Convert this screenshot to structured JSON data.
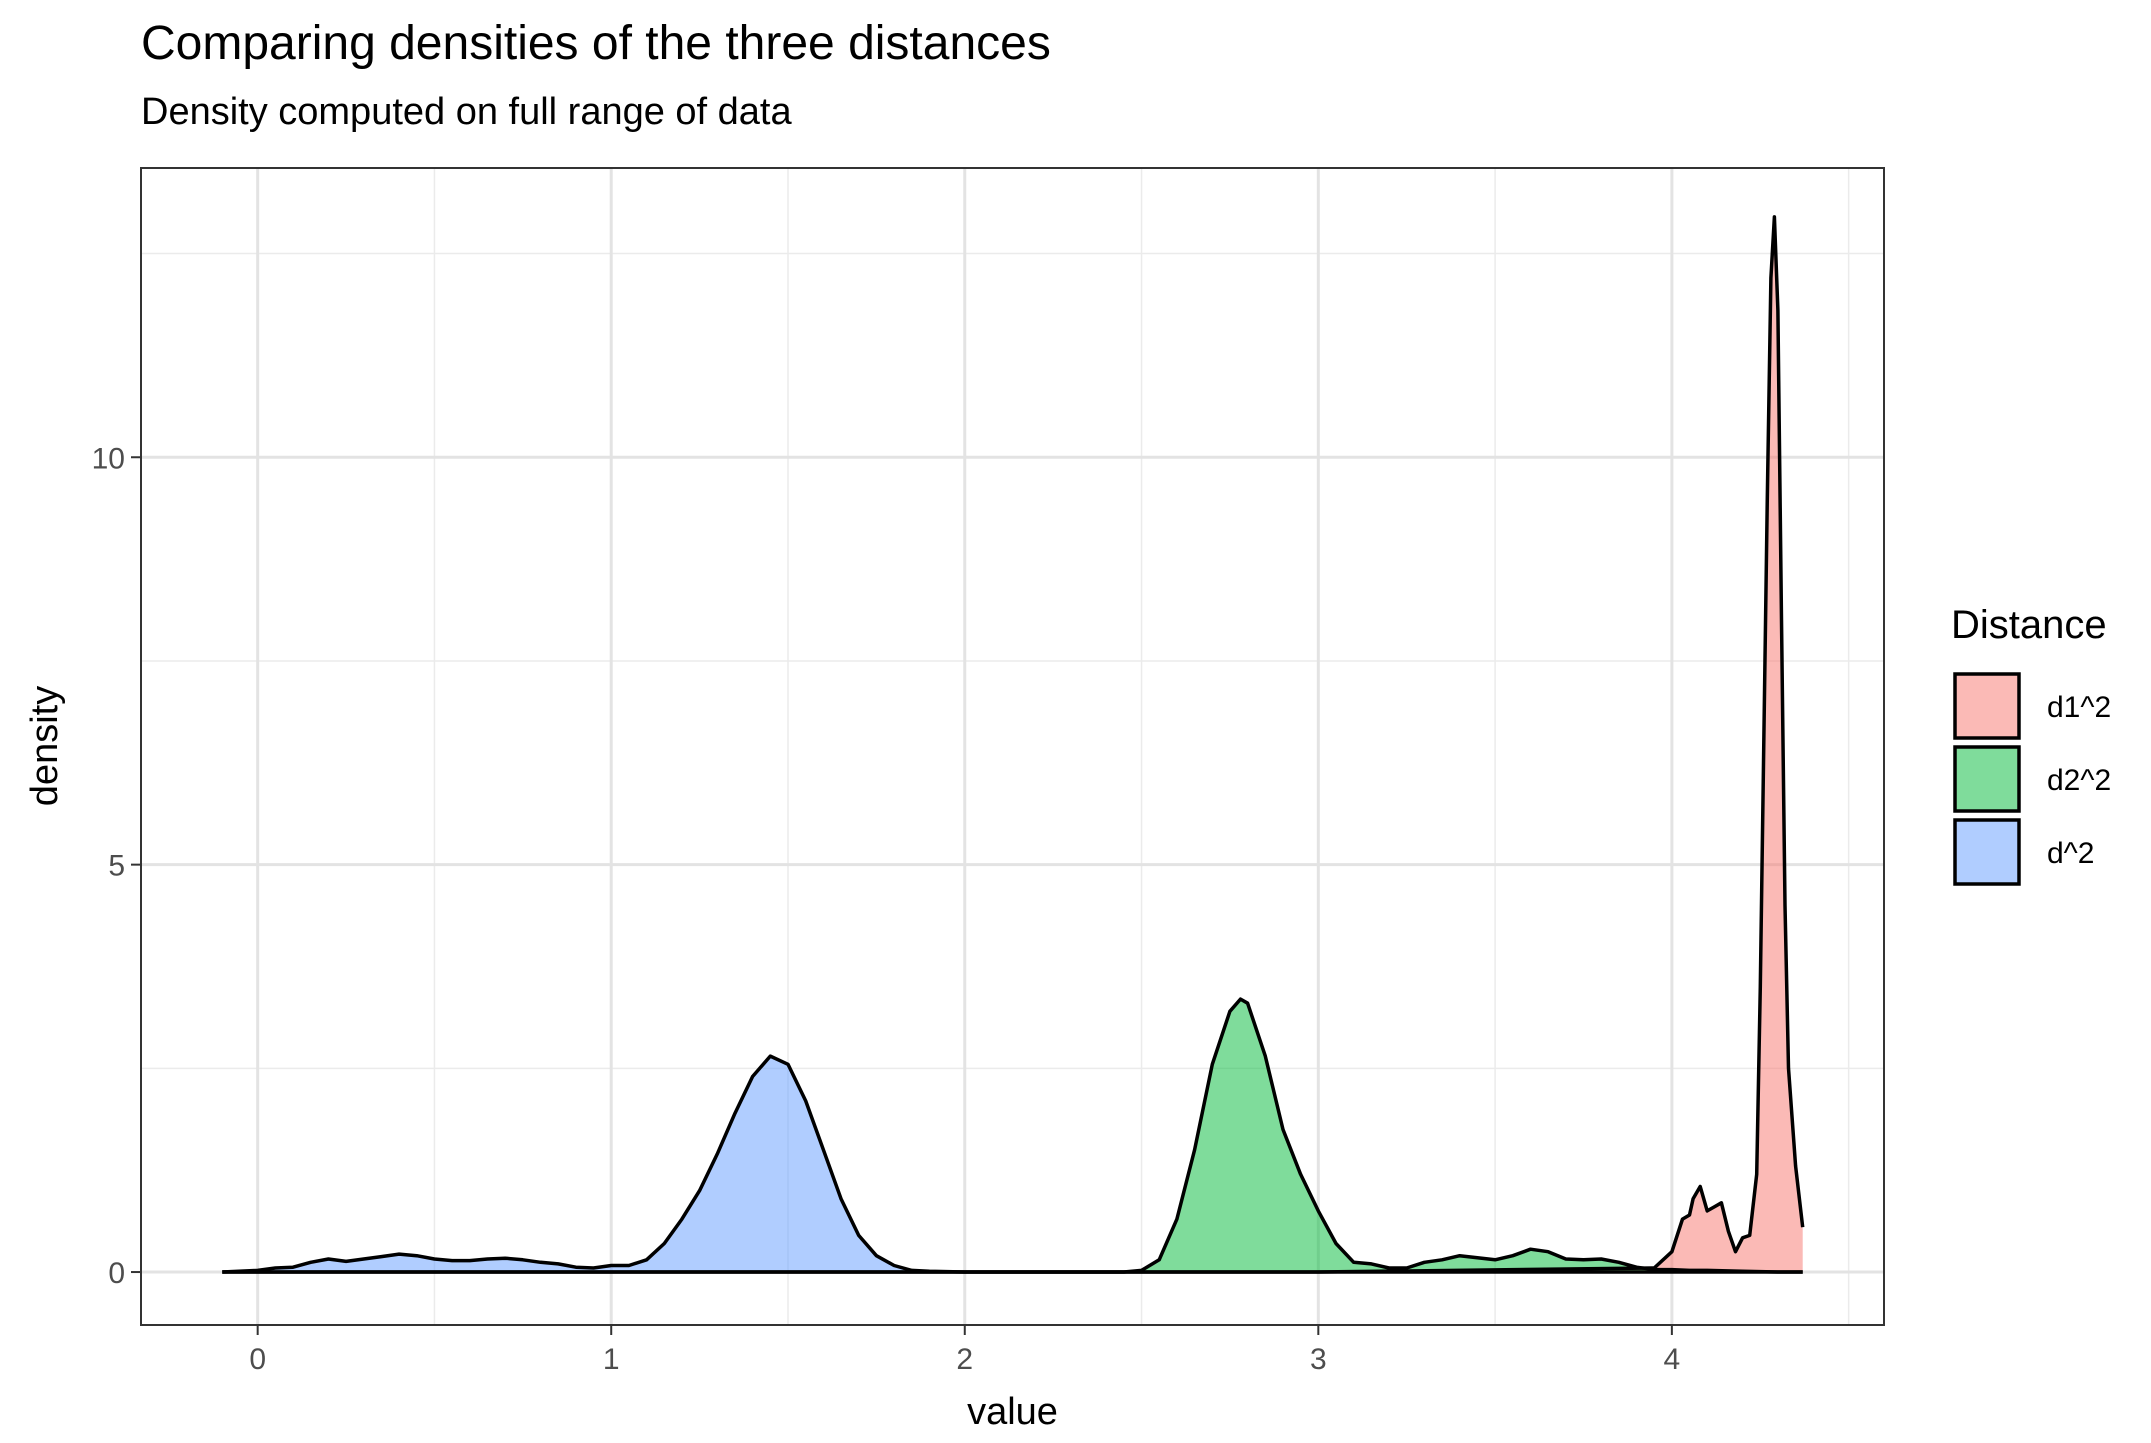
{
  "chart_data": {
    "type": "area",
    "title": "Comparing densities of the three distances",
    "subtitle": "Density computed on full range of data",
    "xlabel": "value",
    "ylabel": "density",
    "xlim": [
      -0.33,
      4.6
    ],
    "ylim": [
      -0.65,
      13.55
    ],
    "x_ticks": [
      0,
      1,
      2,
      3,
      4
    ],
    "y_ticks": [
      0,
      5,
      10
    ],
    "x_tick_labels": [
      "0",
      "1",
      "2",
      "3",
      "4"
    ],
    "y_tick_labels": [
      "0",
      "5",
      "10"
    ],
    "grid": true,
    "legend": {
      "title": "Distance",
      "position": "right"
    },
    "series": [
      {
        "name": "d1^2",
        "color": "#F8766D",
        "x": [
          -0.1,
          3.0,
          3.95,
          4.0,
          4.03,
          4.05,
          4.06,
          4.08,
          4.1,
          4.12,
          4.14,
          4.16,
          4.18,
          4.2,
          4.22,
          4.24,
          4.25,
          4.27,
          4.28,
          4.29,
          4.3,
          4.31,
          4.32,
          4.33,
          4.35,
          4.37
        ],
        "y": [
          0,
          0,
          0.05,
          0.25,
          0.65,
          0.7,
          0.9,
          1.05,
          0.75,
          0.8,
          0.85,
          0.5,
          0.25,
          0.42,
          0.45,
          1.2,
          3.5,
          9.5,
          12.2,
          12.95,
          11.8,
          8.0,
          4.5,
          2.5,
          1.3,
          0.55
        ]
      },
      {
        "name": "d2^2",
        "color": "#00BA38",
        "x": [
          -0.1,
          2.45,
          2.5,
          2.55,
          2.6,
          2.65,
          2.7,
          2.75,
          2.78,
          2.8,
          2.85,
          2.9,
          2.95,
          3.0,
          3.05,
          3.1,
          3.15,
          3.2,
          3.25,
          3.3,
          3.35,
          3.4,
          3.5,
          3.55,
          3.6,
          3.65,
          3.7,
          3.75,
          3.8,
          3.85,
          3.9,
          3.95,
          4.0,
          4.05,
          4.1,
          4.2,
          4.3,
          4.37
        ],
        "y": [
          0,
          0,
          0.02,
          0.15,
          0.65,
          1.5,
          2.55,
          3.2,
          3.35,
          3.3,
          2.65,
          1.75,
          1.2,
          0.75,
          0.35,
          0.12,
          0.1,
          0.05,
          0.05,
          0.12,
          0.15,
          0.2,
          0.15,
          0.2,
          0.28,
          0.25,
          0.16,
          0.15,
          0.16,
          0.12,
          0.06,
          0.03,
          0.03,
          0.02,
          0.02,
          0.01,
          0.0,
          0.0
        ]
      },
      {
        "name": "d^2",
        "color": "#619CFF",
        "x": [
          -0.1,
          0.0,
          0.05,
          0.1,
          0.15,
          0.2,
          0.25,
          0.3,
          0.35,
          0.4,
          0.45,
          0.5,
          0.55,
          0.6,
          0.65,
          0.7,
          0.75,
          0.8,
          0.85,
          0.9,
          0.95,
          1.0,
          1.05,
          1.1,
          1.15,
          1.2,
          1.25,
          1.3,
          1.35,
          1.4,
          1.45,
          1.5,
          1.55,
          1.6,
          1.65,
          1.7,
          1.75,
          1.8,
          1.85,
          1.9,
          2.0,
          2.1,
          4.37
        ],
        "y": [
          0,
          0.02,
          0.05,
          0.06,
          0.12,
          0.16,
          0.13,
          0.16,
          0.19,
          0.22,
          0.2,
          0.16,
          0.14,
          0.14,
          0.16,
          0.17,
          0.15,
          0.12,
          0.1,
          0.06,
          0.05,
          0.08,
          0.08,
          0.15,
          0.35,
          0.65,
          1.0,
          1.45,
          1.95,
          2.4,
          2.65,
          2.55,
          2.1,
          1.5,
          0.9,
          0.45,
          0.2,
          0.08,
          0.02,
          0.01,
          0.0,
          0.0,
          0.0
        ]
      }
    ]
  }
}
